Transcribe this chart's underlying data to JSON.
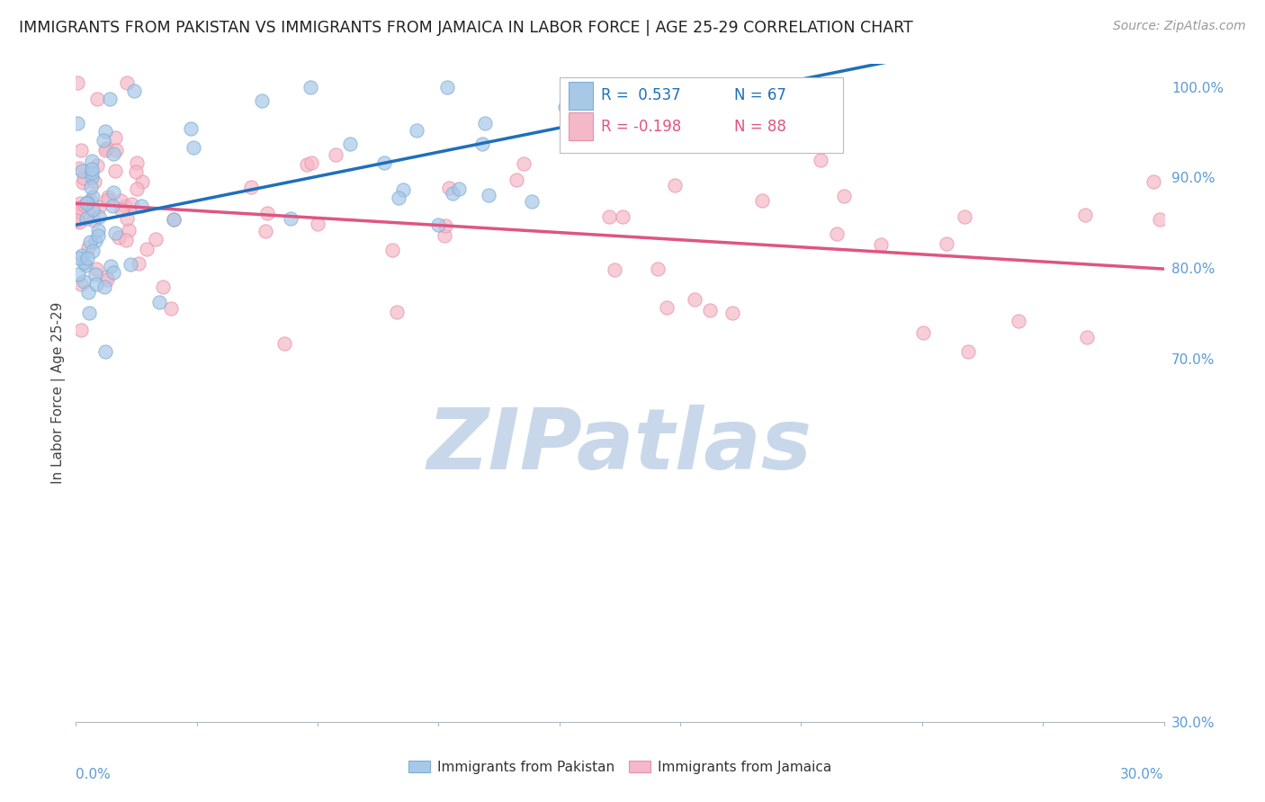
{
  "title": "IMMIGRANTS FROM PAKISTAN VS IMMIGRANTS FROM JAMAICA IN LABOR FORCE | AGE 25-29 CORRELATION CHART",
  "source": "Source: ZipAtlas.com",
  "ylabel": "In Labor Force | Age 25-29",
  "R_blue": 0.537,
  "N_blue": 67,
  "R_pink": -0.198,
  "N_pink": 88,
  "blue_color": "#a8c8e8",
  "blue_edge_color": "#7aadd4",
  "blue_line_color": "#1e6fbd",
  "pink_color": "#f5b8c8",
  "pink_edge_color": "#e890a8",
  "pink_line_color": "#e05580",
  "watermark_color": "#c8d8ea",
  "title_fontsize": 12.5,
  "source_fontsize": 10,
  "tick_label_color": "#5b9bd5",
  "background_color": "#ffffff",
  "grid_color": "#c8d4e0",
  "legend_blue_label": "Immigrants from Pakistan",
  "legend_pink_label": "Immigrants from Jamaica",
  "xmin": 0.0,
  "xmax": 0.3,
  "ymin": 0.3,
  "ymax": 1.025,
  "yticks": [
    1.0,
    0.9,
    0.8,
    0.7,
    0.3
  ],
  "ytick_labels": [
    "100.0%",
    "90.0%",
    "80.0%",
    "70.0%",
    "30.0%"
  ]
}
